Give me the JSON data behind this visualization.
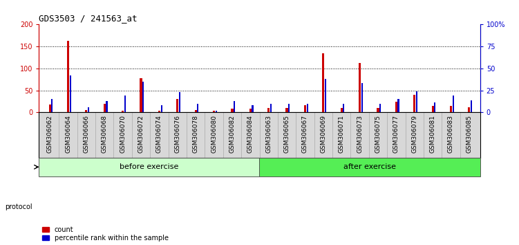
{
  "title": "GDS3503 / 241563_at",
  "samples": [
    "GSM306062",
    "GSM306064",
    "GSM306066",
    "GSM306068",
    "GSM306070",
    "GSM306072",
    "GSM306074",
    "GSM306076",
    "GSM306078",
    "GSM306080",
    "GSM306082",
    "GSM306084",
    "GSM306063",
    "GSM306065",
    "GSM306067",
    "GSM306069",
    "GSM306071",
    "GSM306073",
    "GSM306075",
    "GSM306077",
    "GSM306079",
    "GSM306081",
    "GSM306083",
    "GSM306085"
  ],
  "count": [
    18,
    163,
    6,
    20,
    3,
    78,
    3,
    31,
    5,
    4,
    9,
    8,
    10,
    10,
    17,
    135,
    10,
    113,
    10,
    24,
    40,
    15,
    15,
    11
  ],
  "percentile": [
    15,
    42,
    6,
    13,
    19,
    35,
    8,
    23,
    10,
    2,
    13,
    8,
    10,
    10,
    10,
    38,
    10,
    33,
    10,
    15,
    24,
    11,
    19,
    14
  ],
  "count_color": "#cc0000",
  "percentile_color": "#0000cc",
  "before_count": 12,
  "after_count": 12,
  "before_label": "before exercise",
  "after_label": "after exercise",
  "protocol_label": "protocol",
  "before_bg": "#ccffcc",
  "after_bg": "#55ee55",
  "xlabel_bg": "#d8d8d8",
  "ylim_left": [
    0,
    200
  ],
  "ylim_right": [
    0,
    100
  ],
  "yticks_left": [
    0,
    50,
    100,
    150,
    200
  ],
  "yticks_right": [
    0,
    25,
    50,
    75,
    100
  ],
  "ytick_labels_left": [
    "0",
    "50",
    "100",
    "150",
    "200"
  ],
  "ytick_labels_right": [
    "0",
    "25",
    "50",
    "75",
    "100%"
  ],
  "legend_count": "count",
  "legend_percentile": "percentile rank within the sample",
  "plot_bg": "#ffffff",
  "red_bar_width": 0.12,
  "blue_bar_width": 0.08
}
